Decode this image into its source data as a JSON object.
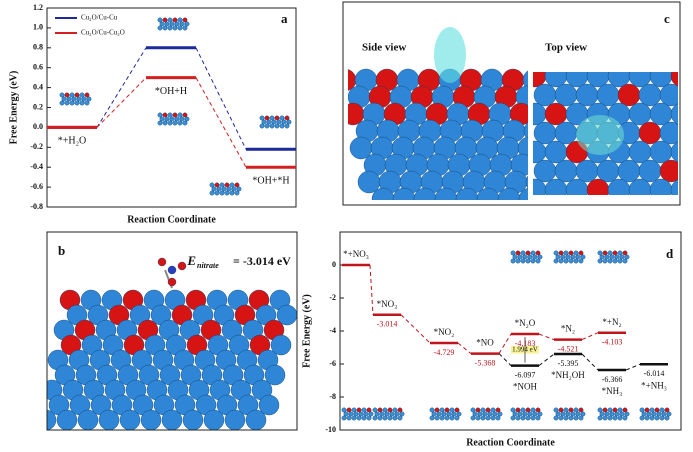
{
  "chart_data": [
    {
      "type": "energy_profile",
      "panel": "a",
      "ylabel": "Free Energy (eV)",
      "xlabel": "Reaction Coordinate",
      "categories": [
        "*+H₂O",
        "*OH+H",
        "*OH+*H"
      ],
      "series": [
        {
          "name": "Cu₂O/Cu-Cu",
          "color": "#1c2a9c",
          "values": [
            0,
            0.8,
            -0.22
          ]
        },
        {
          "name": "Cu₂O/Cu-Cu₂O",
          "color": "#d41f1f",
          "values": [
            0,
            0.5,
            -0.4
          ]
        }
      ],
      "ylim": [
        -0.8,
        1.2
      ],
      "yticks": [
        -0.8,
        -0.6,
        -0.4,
        -0.2,
        {
          "value": 0,
          "label": "0.0"
        },
        0.2,
        0.4,
        0.6,
        0.8,
        {
          "value": 1,
          "label": "1.0"
        },
        1.2
      ]
    },
    {
      "type": "energy_profile",
      "panel": "d",
      "ylabel": "Free Energy (eV)",
      "xlabel": "Reaction Coordinate",
      "categories": [
        null,
        null,
        null,
        null,
        null,
        null,
        null,
        null
      ],
      "series": [
        {
          "color": "#c0141c",
          "values": [
            0,
            -3.014,
            -4.729,
            -5.368,
            -4.183,
            -4.521,
            -4.103,
            null
          ],
          "labels": [
            "*+NO₃",
            "*NO₃",
            "*NO₂",
            "*NO",
            "*N₂O",
            "*N₂",
            "*+N₂",
            null
          ],
          "value_labels": [
            null,
            "-3.014",
            "-4.729",
            "-5.368",
            "-4.183",
            "-4.521",
            "-4.103",
            null
          ]
        },
        {
          "color": "#111111",
          "values": [
            null,
            null,
            null,
            null,
            -6.097,
            -5.395,
            -6.366,
            -6.014
          ],
          "labels": [
            null,
            null,
            null,
            null,
            "*NOH",
            "*NH₂OH",
            "*NH₃",
            "*+NH₃"
          ],
          "value_labels": [
            null,
            null,
            null,
            null,
            "-6.097",
            "-5.395",
            "-6.366",
            "-6.014"
          ]
        }
      ],
      "annotation": "1.994 eV",
      "ylim": [
        -10,
        2
      ],
      "yticks": [
        -10,
        -8,
        -6,
        -4,
        -2,
        0
      ]
    }
  ],
  "panel_b": {
    "label": "b",
    "energy_symbol": "E",
    "energy_subscript": "nitrate",
    "energy_text": "= -3.014 eV"
  },
  "panel_c": {
    "label": "c",
    "left_view": "Side view",
    "right_view": "Top view"
  }
}
